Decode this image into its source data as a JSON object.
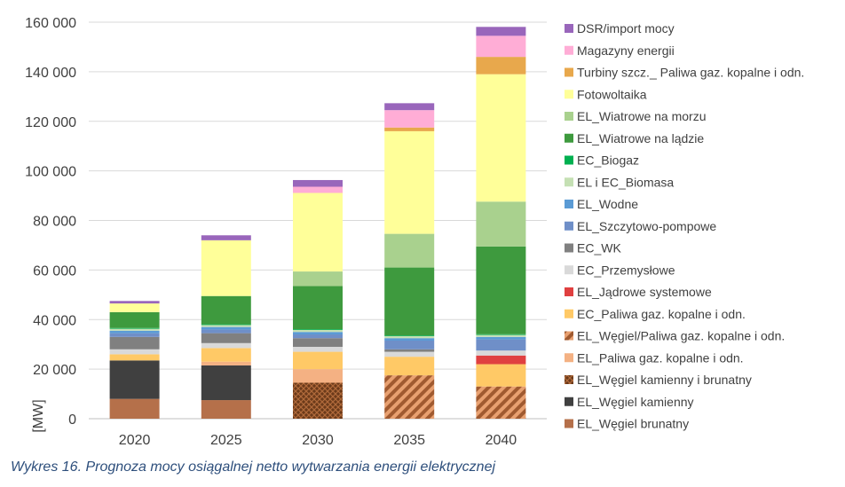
{
  "caption": "Wykres 16. Prognoza mocy osiągalnej netto wytwarzania energii elektrycznej",
  "chart_data": {
    "type": "bar",
    "stacked": true,
    "title": "",
    "xlabel": "",
    "ylabel": "[MW]",
    "ylim": [
      0,
      160000
    ],
    "ytick_step": 20000,
    "ytick_labels": [
      "0",
      "20 000",
      "40 000",
      "60 000",
      "80 000",
      "100 000",
      "120 000",
      "140 000",
      "160 000"
    ],
    "grid": true,
    "legend_position": "right",
    "categories": [
      "2020",
      "2025",
      "2030",
      "2035",
      "2040"
    ],
    "series": [
      {
        "name": "EL_Węgiel brunatny",
        "color": "#b5704a",
        "pattern": "none",
        "values": [
          8000,
          7500,
          0,
          0,
          0
        ]
      },
      {
        "name": "EL_Węgiel kamienny",
        "color": "#404040",
        "pattern": "none",
        "values": [
          15500,
          14000,
          0,
          0,
          0
        ]
      },
      {
        "name": "EL_Węgiel kamienny i brunatny",
        "color": "#8b4513",
        "pattern": "crosshatch",
        "values": [
          0,
          0,
          14500,
          0,
          0
        ]
      },
      {
        "name": "EL_Paliwa gaz. kopalne i odn.",
        "color": "#f4b183",
        "pattern": "none",
        "values": [
          0,
          1500,
          5500,
          0,
          0
        ]
      },
      {
        "name": "EL_Węgiel/Paliwa gaz. kopalne i odn.",
        "color": "#c55a11",
        "pattern": "diagonal",
        "values": [
          0,
          0,
          0,
          17500,
          13000
        ]
      },
      {
        "name": "EC_Paliwa gaz. kopalne i odn.",
        "color": "#ffc966",
        "pattern": "none",
        "values": [
          2500,
          5500,
          7000,
          7500,
          9000
        ]
      },
      {
        "name": "EL_Jądrowe systemowe",
        "color": "#e04040",
        "pattern": "none",
        "values": [
          0,
          0,
          0,
          0,
          3500
        ]
      },
      {
        "name": "EC_Przemysłowe",
        "color": "#d9d9d9",
        "pattern": "none",
        "values": [
          2000,
          2000,
          2000,
          2000,
          2000
        ]
      },
      {
        "name": "EC_WK",
        "color": "#808080",
        "pattern": "none",
        "values": [
          5000,
          4000,
          3500,
          1000,
          0
        ]
      },
      {
        "name": "EL_Szczytowo-pompowe",
        "color": "#6f8fc8",
        "pattern": "none",
        "values": [
          1500,
          1500,
          1500,
          3500,
          4500
        ]
      },
      {
        "name": "EL_Wodne",
        "color": "#5b9bd5",
        "pattern": "none",
        "values": [
          1000,
          1000,
          1000,
          1000,
          1000
        ]
      },
      {
        "name": "EL i EC_Biomasa",
        "color": "#c5e0b4",
        "pattern": "none",
        "values": [
          800,
          800,
          800,
          800,
          800
        ]
      },
      {
        "name": "EC_Biogaz",
        "color": "#00b050",
        "pattern": "none",
        "values": [
          300,
          300,
          300,
          300,
          300
        ]
      },
      {
        "name": "EL_Wiatrowe na lądzie",
        "color": "#3e9a3e",
        "pattern": "none",
        "values": [
          6400,
          11400,
          17400,
          27400,
          35400
        ]
      },
      {
        "name": "EL_Wiatrowe na morzu",
        "color": "#a9d18e",
        "pattern": "none",
        "values": [
          0,
          0,
          5900,
          13600,
          18100
        ]
      },
      {
        "name": "Fotowoltaika",
        "color": "#ffff99",
        "pattern": "none",
        "values": [
          3500,
          22500,
          31700,
          41400,
          51400
        ]
      },
      {
        "name": "Turbiny szcz._ Paliwa gaz. kopalne i odn.",
        "color": "#e8a84c",
        "pattern": "none",
        "values": [
          0,
          0,
          0,
          1500,
          7000
        ]
      },
      {
        "name": "Magazyny energii",
        "color": "#ffadd6",
        "pattern": "none",
        "values": [
          0,
          0,
          2500,
          7000,
          8500
        ]
      },
      {
        "name": "DSR/import mocy",
        "color": "#9966bb",
        "pattern": "none",
        "values": [
          1000,
          2000,
          2700,
          2800,
          3600
        ]
      }
    ]
  }
}
